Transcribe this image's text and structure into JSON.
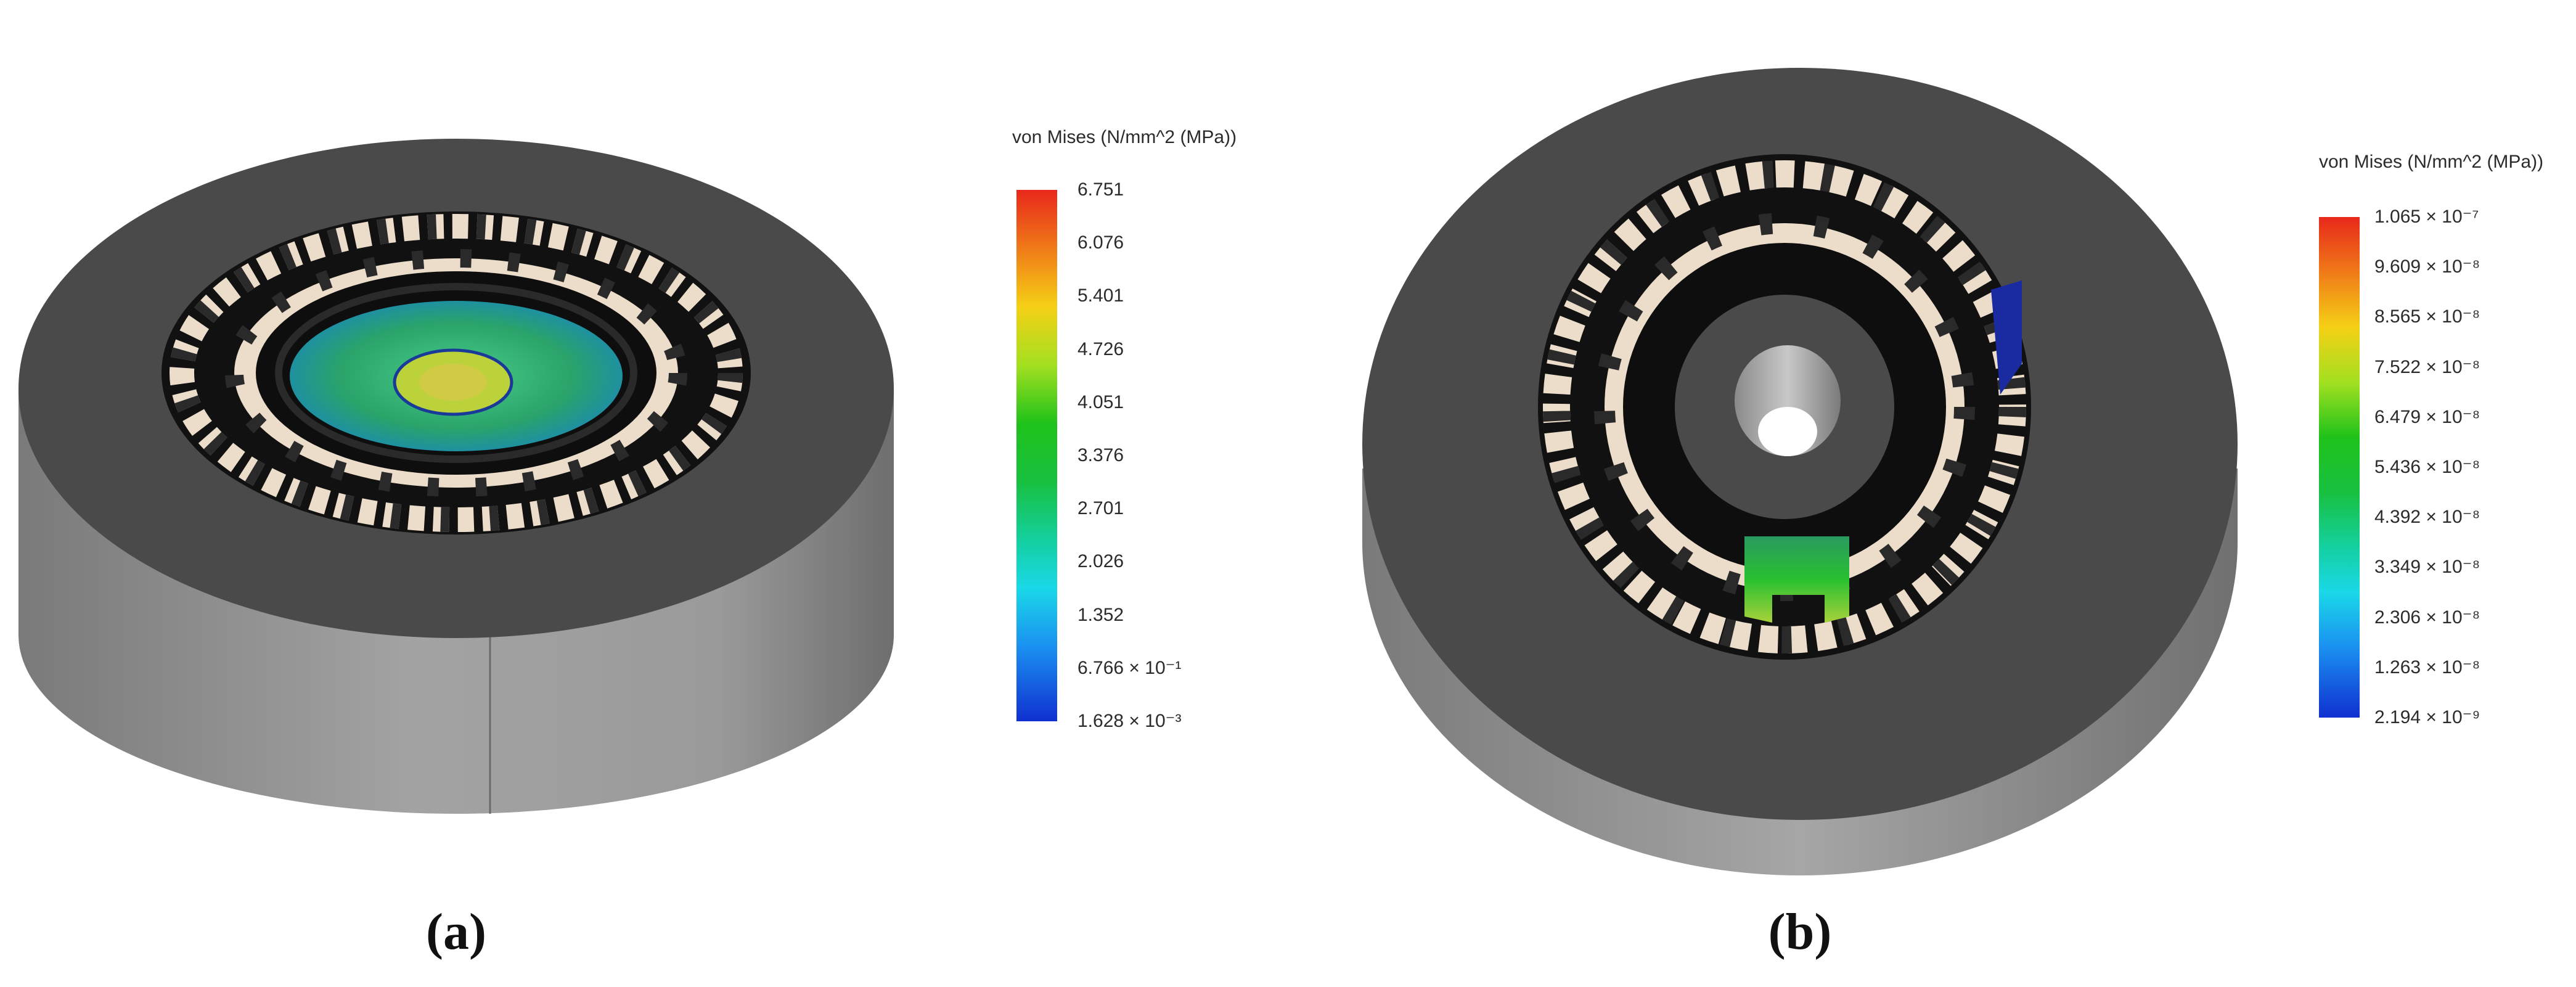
{
  "panels": [
    {
      "label": "(a)",
      "legend": {
        "title": "von Mises (N/mm^2 (MPa))",
        "ticks": [
          "6.751",
          "6.076",
          "5.401",
          "4.726",
          "4.051",
          "3.376",
          "2.701",
          "2.026",
          "1.352",
          "6.766 × 10⁻¹",
          "1.628 × 10⁻³"
        ]
      }
    },
    {
      "label": "(b)",
      "legend": {
        "title": "von Mises (N/mm^2 (MPa))",
        "ticks": [
          "1.065 × 10⁻⁷",
          "9.609 × 10⁻⁸",
          "8.565 × 10⁻⁸",
          "7.522 × 10⁻⁸",
          "6.479 × 10⁻⁸",
          "5.436 × 10⁻⁸",
          "4.392 × 10⁻⁸",
          "3.349 × 10⁻⁸",
          "2.306 × 10⁻⁸",
          "1.263 × 10⁻⁸",
          "2.194 × 10⁻⁹"
        ]
      }
    }
  ],
  "colors": {
    "housing": "#4a4a4a",
    "housing_side": "#8a8a8a",
    "magnet": "#e8d6c4",
    "stress_high": "#e8281b",
    "stress_low": "#1030d0"
  }
}
